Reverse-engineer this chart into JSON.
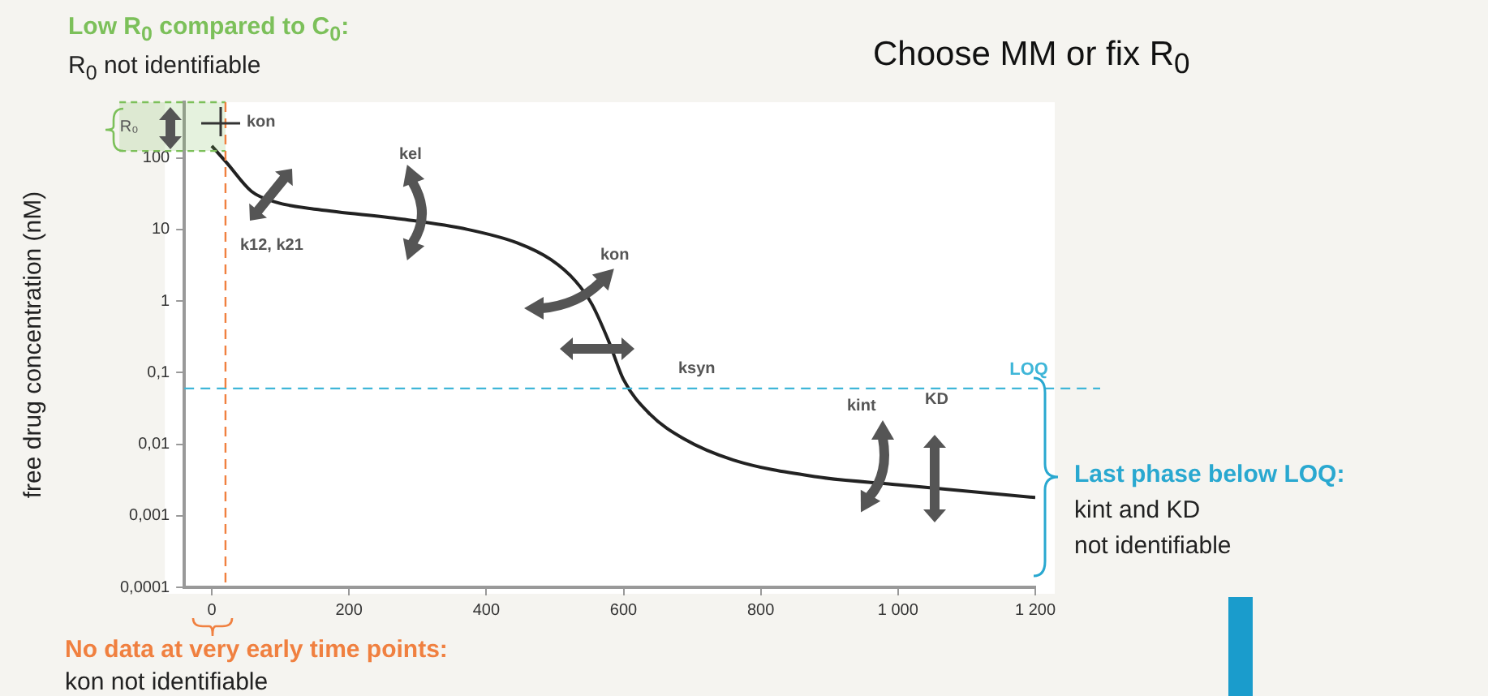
{
  "chart_data": {
    "type": "line",
    "ylabel": "free drug concentration (nM)",
    "x": [
      0,
      22,
      58,
      94,
      155,
      276,
      373,
      445,
      494,
      530,
      554,
      578,
      600,
      639,
      687,
      760,
      881,
      1002,
      1200
    ],
    "series": [
      {
        "color": "#222222",
        "values": [
          147,
          85,
          34,
          24,
          19,
          14,
          10,
          6.5,
          3.8,
          1.9,
          0.9,
          0.28,
          0.08,
          0.026,
          0.012,
          0.006,
          0.0035,
          0.0027,
          0.0018
        ]
      }
    ],
    "log": "y",
    "xlim": [
      -40,
      1200
    ],
    "ylim": [
      0.0001,
      600
    ],
    "xticks": [
      0,
      200,
      400,
      600,
      800,
      {
        "value": 1000,
        "label": "1 000"
      },
      {
        "value": 1200,
        "label": "1 200"
      }
    ],
    "yticks": [
      {
        "value": 0.0001,
        "label": "0,0001"
      },
      {
        "value": 0.001,
        "label": "0,001"
      },
      {
        "value": 0.01,
        "label": "0,01"
      },
      {
        "value": 0.1,
        "label": "0,1"
      },
      1,
      10,
      100
    ],
    "ref_lines": [
      {
        "axis": "y",
        "value": 0.06,
        "label": "LOQ",
        "color": "#3fb6d8",
        "line_style": "dashed"
      },
      {
        "axis": "x",
        "value": 20,
        "color": "#f08040",
        "line_style": "dashed"
      }
    ],
    "bands": [
      {
        "axis": "y",
        "from": 125,
        "to": 600,
        "label": "R₀",
        "color": "#7cc05a"
      }
    ],
    "grid": false,
    "legend": false,
    "marker": "none",
    "line_style": "solid",
    "annotations": [
      "kon",
      "kel",
      "k12, k21",
      "kon",
      "ksyn",
      "kint",
      "KD",
      "Low R$_{0}$ compared to C$_{0}$:",
      "R$_{0}$ not identifiable",
      "Choose MM or fix R$_{0}$",
      "No data at very early time points:",
      "kon not identifiable",
      "Last phase below LOQ:",
      "kint and KD",
      "not identifiable"
    ]
  }
}
